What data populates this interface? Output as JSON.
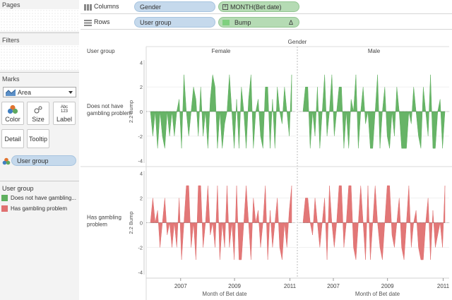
{
  "left": {
    "pages_title": "Pages",
    "filters_title": "Filters",
    "marks_title": "Marks",
    "mark_type": "Area",
    "marks_buttons": {
      "color": "Color",
      "size": "Size",
      "label": "Label",
      "label_icon": "Abc\n123",
      "detail": "Detail",
      "tooltip": "Tooltip"
    },
    "color_pill": "User group",
    "legend": {
      "title": "User group",
      "items": [
        {
          "label": "Does not have gambling...",
          "color": "#5fb05f"
        },
        {
          "label": "Has gambling problem",
          "color": "#e07070"
        }
      ]
    }
  },
  "shelves": {
    "columns": {
      "label": "Columns",
      "pills": [
        "Gender",
        "MONTH(Bet date)"
      ]
    },
    "rows": {
      "label": "Rows",
      "pills": [
        "User group",
        "Bump"
      ],
      "delta": "Δ"
    }
  },
  "chart_data": {
    "type": "area",
    "column_header": "Gender",
    "row_header": "User group",
    "columns": [
      "Female",
      "Male"
    ],
    "rows": [
      {
        "label": "Does not have gambling problem",
        "color": "#5fb05f",
        "female": [
          0,
          -2,
          0,
          -3,
          0,
          -2,
          -3,
          0,
          -2,
          0,
          -2,
          0,
          1,
          -3,
          3,
          0,
          -2,
          0,
          2,
          1,
          -2,
          2,
          -2,
          0,
          -3,
          1,
          3,
          2,
          -3,
          0,
          -3,
          -1,
          0,
          3,
          0,
          -3,
          1,
          -3,
          2,
          0,
          -3,
          1,
          3,
          -3,
          0,
          1,
          -2,
          -3,
          2,
          2,
          -3,
          1,
          -3,
          2,
          0,
          -1,
          2,
          0,
          -2,
          3
        ],
        "male": [
          0,
          2,
          2,
          -3,
          0,
          -2,
          2,
          -3,
          0,
          3,
          -2,
          0,
          3,
          -2,
          0,
          2,
          2,
          -3,
          0,
          -3,
          1,
          0,
          3,
          -3,
          0,
          2,
          -1,
          0,
          -3,
          -3,
          0,
          3,
          -3,
          0,
          2,
          -2,
          -3,
          0,
          -2,
          2,
          0,
          -3,
          -3,
          -3,
          0,
          -1,
          2,
          0,
          -2,
          -3,
          2,
          0,
          -2,
          3,
          -3,
          -3,
          0,
          1,
          -3,
          0
        ]
      },
      {
        "label": "Has gambling problem",
        "color": "#e07070",
        "female": [
          0,
          2,
          0,
          1,
          -2,
          0,
          2,
          -1,
          0,
          -2,
          0,
          -2,
          2,
          -3,
          0,
          3,
          3,
          -2,
          0,
          -3,
          3,
          3,
          -2,
          0,
          3,
          -1,
          0,
          -2,
          3,
          -3,
          0,
          -2,
          3,
          -2,
          0,
          -3,
          3,
          -3,
          -3,
          0,
          3,
          0,
          -3,
          2,
          0,
          1,
          -2,
          0,
          3,
          -3,
          1,
          -2,
          0,
          2,
          -2,
          -3,
          0,
          -2,
          1,
          3
        ],
        "male": [
          0,
          2,
          2,
          0,
          -1,
          2,
          0,
          -2,
          0,
          2,
          -3,
          3,
          0,
          -2,
          0,
          3,
          3,
          -2,
          0,
          3,
          3,
          -2,
          -3,
          0,
          3,
          0,
          -3,
          3,
          -3,
          0,
          3,
          0,
          -2,
          -3,
          0,
          3,
          3,
          -1,
          -2,
          0,
          2,
          -2,
          -3,
          0,
          3,
          -2,
          0,
          1,
          -2,
          -3,
          -3,
          0,
          2,
          -3,
          1,
          -2,
          -1,
          0,
          -2,
          3
        ]
      }
    ],
    "y_axis_label": "2.2 Bump",
    "y_ticks": [
      4,
      2,
      0,
      -2,
      -4
    ],
    "ylim": [
      -4.2,
      4.2
    ],
    "x_axis_label": "Month of Bet date",
    "x_ticks": [
      "2007",
      "2009",
      "2011"
    ]
  }
}
